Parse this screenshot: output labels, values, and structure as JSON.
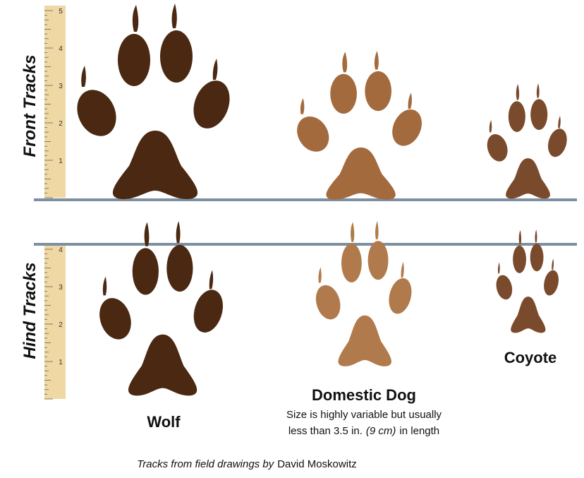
{
  "labels": {
    "front": "Front Tracks",
    "hind": "Hind Tracks"
  },
  "rulers": {
    "front": [
      "1",
      "2",
      "3",
      "4",
      "5"
    ],
    "hind": [
      "1",
      "2",
      "3",
      "4"
    ]
  },
  "animals": {
    "wolf": "Wolf",
    "dog": "Domestic Dog",
    "coyote": "Coyote"
  },
  "note": {
    "line1": "Size is highly variable but usually",
    "line2_a": "less than 3.5 in.",
    "line2_b": "(9 cm)",
    "line2_c": "in length"
  },
  "credit": {
    "italic": "Tracks from field drawings by",
    "name": "David Moskowitz"
  }
}
